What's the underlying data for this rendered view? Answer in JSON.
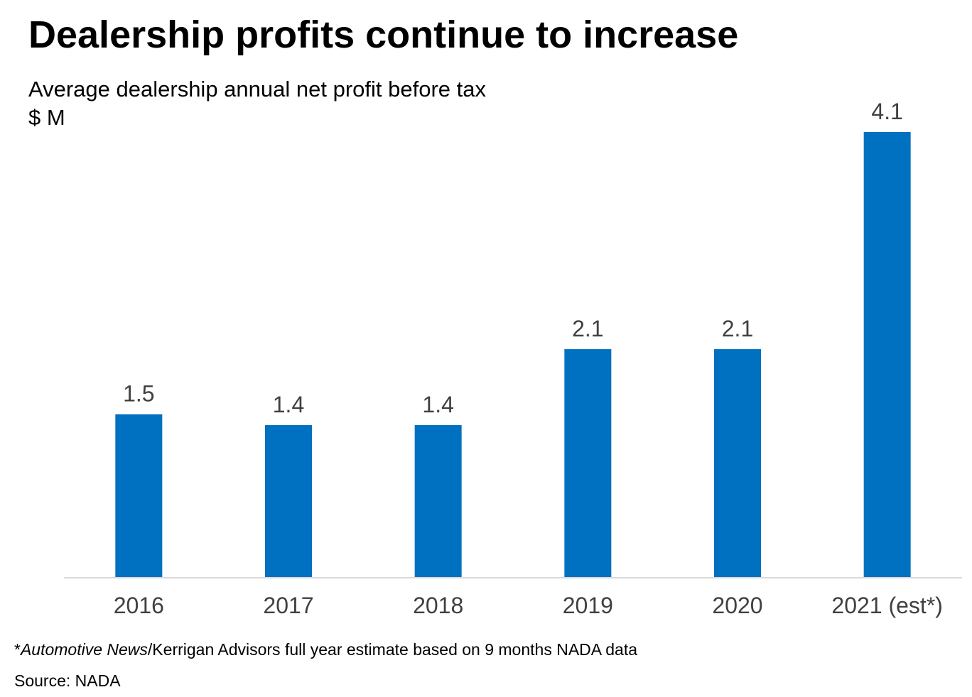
{
  "chart_data": {
    "type": "bar",
    "title": "Dealership profits continue to increase",
    "subtitle": "Average dealership annual net profit before tax",
    "ylabel": "$ M",
    "xlabel": "",
    "categories": [
      "2016",
      "2017",
      "2018",
      "2019",
      "2020",
      "2021 (est*)"
    ],
    "series": [
      {
        "values": [
          1.5,
          1.4,
          1.4,
          2.1,
          2.1,
          4.1
        ]
      }
    ],
    "value_labels": [
      "1.5",
      "1.4",
      "1.4",
      "2.1",
      "2.1",
      "4.1"
    ],
    "ylim": [
      0,
      4.1
    ],
    "grid": false,
    "legend": "none",
    "bar_color": "#0070C0",
    "label_color": "#404040"
  },
  "footnote": {
    "marker": "*",
    "italic": "Automotive News",
    "rest": "/Kerrigan Advisors full year estimate based on 9 months NADA data"
  },
  "source": "Source: NADA"
}
